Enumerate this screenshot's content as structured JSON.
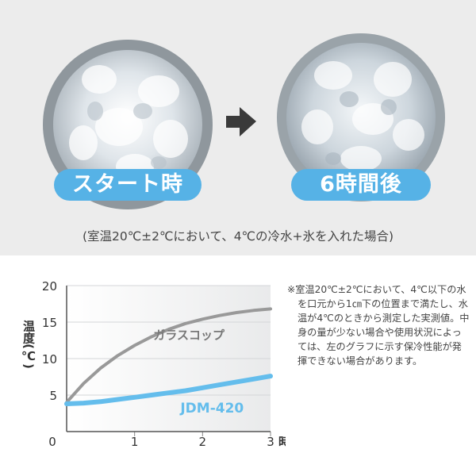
{
  "panel_left": {
    "label": "スタート時"
  },
  "panel_right": {
    "label": "6時間後"
  },
  "caption": "(室温20℃±2℃において、4℃の冷水+氷を入れた場合)",
  "note": "※室温20℃±2℃において、4℃以下の水を口元から1㎝下の位置まで満たし、水温が4℃のときから測定した実測値。中身の量が少ない場合や使用状況によっては、左のグラフに示す保冷性能が発揮できない場合があります。",
  "colors": {
    "accent": "#56b2e6",
    "glass": "#999999",
    "product": "#64bdec"
  },
  "chart_data": {
    "type": "line",
    "ylabel": "温度(℃)",
    "xlabel": "時間(h)",
    "xlim": [
      0,
      3
    ],
    "ylim": [
      0,
      20
    ],
    "x_ticks": [
      "0",
      "1",
      "2",
      "3"
    ],
    "y_ticks": [
      "20",
      "15",
      "10",
      "5"
    ],
    "series": [
      {
        "name": "ガラスコップ",
        "color": "#999999",
        "x": [
          0,
          0.25,
          0.5,
          0.75,
          1,
          1.25,
          1.5,
          1.75,
          2,
          2.25,
          2.5,
          2.75,
          3
        ],
        "y": [
          4,
          6.6,
          8.7,
          10.4,
          11.8,
          13.0,
          14.0,
          14.8,
          15.4,
          15.9,
          16.3,
          16.6,
          16.8
        ]
      },
      {
        "name": "JDM-420",
        "color": "#64bdec",
        "x": [
          0,
          0.25,
          0.5,
          0.75,
          1,
          1.25,
          1.5,
          1.75,
          2,
          2.25,
          2.5,
          2.75,
          3
        ],
        "y": [
          3.8,
          3.9,
          4.1,
          4.4,
          4.7,
          5.0,
          5.3,
          5.6,
          6.0,
          6.4,
          6.8,
          7.2,
          7.6
        ]
      }
    ]
  }
}
